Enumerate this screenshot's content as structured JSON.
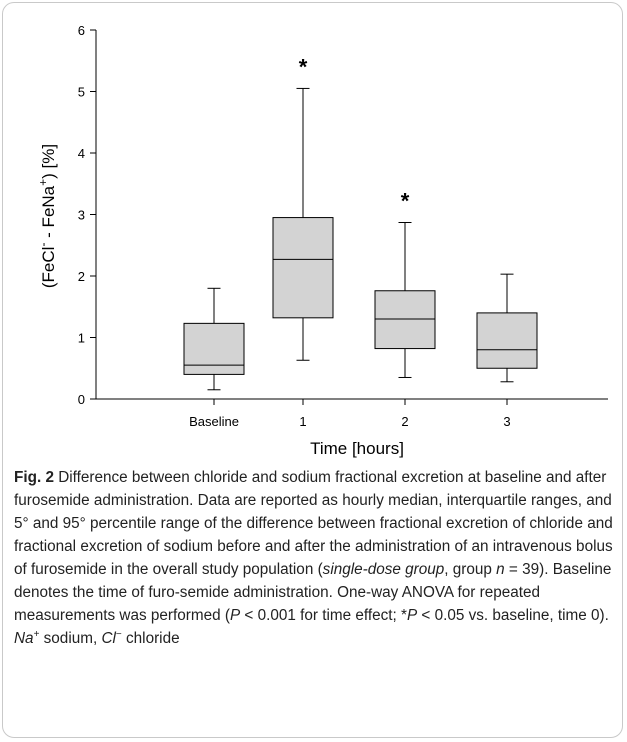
{
  "chart_data": {
    "type": "box",
    "ylabel_parts": {
      "a": "(FeCl",
      "sup1": "-",
      "b": " - FeNa",
      "sup2": "+",
      "c": ") [%]"
    },
    "xlabel": "Time [hours]",
    "ylim": [
      0,
      6
    ],
    "yticks": [
      "0",
      "1",
      "2",
      "3",
      "4",
      "5",
      "6"
    ],
    "categories": [
      "Baseline",
      "1",
      "2",
      "3"
    ],
    "boxes": [
      {
        "label": "Baseline",
        "whisker_low": 0.15,
        "q1": 0.4,
        "median": 0.55,
        "q3": 1.23,
        "whisker_high": 1.8,
        "significant": false
      },
      {
        "label": "1",
        "whisker_low": 0.63,
        "q1": 1.32,
        "median": 2.27,
        "q3": 2.95,
        "whisker_high": 5.05,
        "significant": true
      },
      {
        "label": "2",
        "whisker_low": 0.35,
        "q1": 0.82,
        "median": 1.3,
        "q3": 1.76,
        "whisker_high": 2.87,
        "significant": true
      },
      {
        "label": "3",
        "whisker_low": 0.28,
        "q1": 0.5,
        "median": 0.8,
        "q3": 1.4,
        "whisker_high": 2.03,
        "significant": false
      }
    ],
    "significance_marker": "*",
    "box_fill": "#d3d3d3"
  },
  "caption": {
    "fig_label": "Fig. 2",
    "t1": "  Difference between chloride and sodium fractional excretion at baseline and after furosemide administration. Data are reported as hourly median, interquartile ranges, and 5° and 95° percentile range of the difference between fractional excretion of chloride and fractional excretion of sodium before and after the administration of an intravenous bolus of furosemide in the overall study population (",
    "italic1": "single-dose group",
    "t2": ", group ",
    "italic_n": "n",
    "t3": " = 39). Baseline denotes the time of furo-semide administration. One-way ANOVA for repeated measurements was performed (",
    "italic_p1": "P",
    "t4": " < 0.001 for time effect; *",
    "italic_p2": "P",
    "t5": " < 0.05 vs. baseline, time 0). ",
    "italic_na": "Na",
    "sup_na": "+",
    "t6": " sodium, ",
    "italic_cl": "Cl",
    "sup_cl": "−",
    "t7": " chloride"
  }
}
